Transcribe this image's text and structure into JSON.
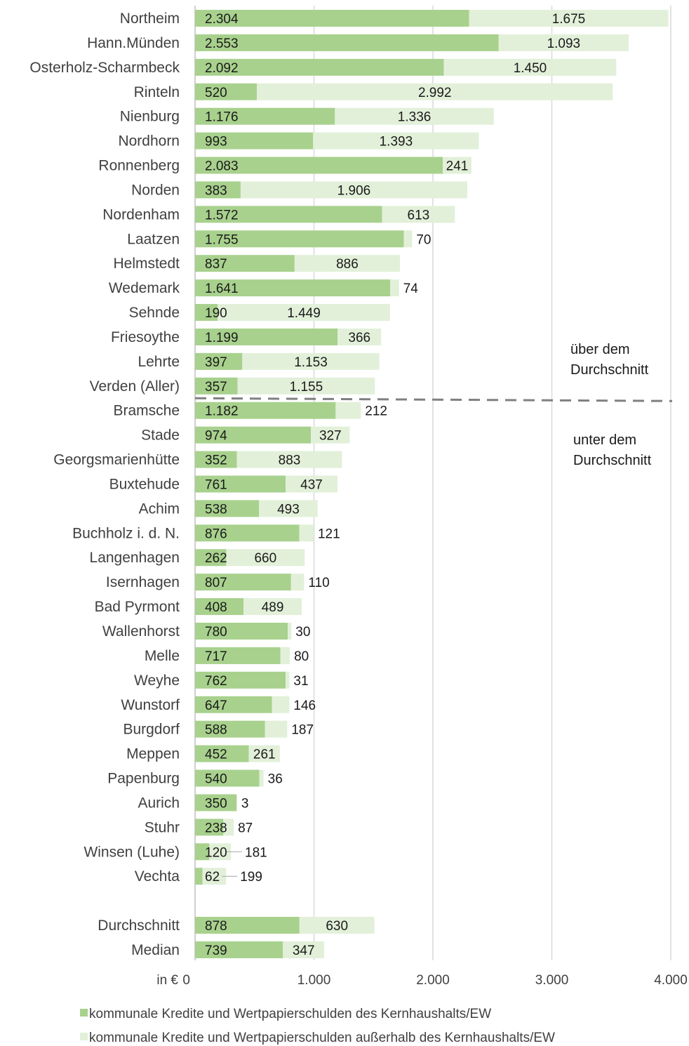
{
  "chart_data": {
    "type": "bar",
    "orientation": "horizontal",
    "stacked": true,
    "categories": [
      "Northeim",
      "Hann.Münden",
      "Osterholz-Scharmbeck",
      "Rinteln",
      "Nienburg",
      "Nordhorn",
      "Ronnenberg",
      "Norden",
      "Nordenham",
      "Laatzen",
      "Helmstedt",
      "Wedemark",
      "Sehnde",
      "Friesoythe",
      "Lehrte",
      "Verden (Aller)",
      "Bramsche",
      "Stade",
      "Georgsmarienhütte",
      "Buxtehude",
      "Achim",
      "Buchholz i. d. N.",
      "Langenhagen",
      "Isernhagen",
      "Bad Pyrmont",
      "Wallenhorst",
      "Melle",
      "Weyhe",
      "Wunstorf",
      "Burgdorf",
      "Meppen",
      "Papenburg",
      "Aurich",
      "Stuhr",
      "Winsen (Luhe)",
      "Vechta",
      "",
      "Durchschnitt",
      "Median"
    ],
    "series": [
      {
        "name": "kommunale Kredite und Wertpapierschulden des Kernhaushalts/EW",
        "color": "#a8d18d",
        "values": [
          2304,
          2553,
          2092,
          520,
          1176,
          993,
          2083,
          383,
          1572,
          1755,
          837,
          1641,
          190,
          1199,
          397,
          357,
          1182,
          974,
          352,
          761,
          538,
          876,
          262,
          807,
          408,
          780,
          717,
          762,
          647,
          588,
          452,
          540,
          350,
          238,
          120,
          62,
          null,
          878,
          739
        ],
        "labels": [
          "2.304",
          "2.553",
          "2.092",
          "520",
          "1.176",
          "993",
          "2.083",
          "383",
          "1.572",
          "1.755",
          "837",
          "1.641",
          "190",
          "1.199",
          "397",
          "357",
          "1.182",
          "974",
          "352",
          "761",
          "538",
          "876",
          "262",
          "807",
          "408",
          "780",
          "717",
          "762",
          "647",
          "588",
          "452",
          "540",
          "350",
          "238",
          "120",
          "62",
          "",
          "878",
          "739"
        ]
      },
      {
        "name": "kommunale Kredite und Wertpapierschulden außerhalb des Kernhaushalts/EW",
        "color": "#e2f0d9",
        "values": [
          1675,
          1093,
          1450,
          2992,
          1336,
          1393,
          241,
          1906,
          613,
          70,
          886,
          74,
          1449,
          366,
          1153,
          1155,
          212,
          327,
          883,
          437,
          493,
          121,
          660,
          110,
          489,
          30,
          80,
          31,
          146,
          187,
          261,
          36,
          3,
          87,
          181,
          199,
          null,
          630,
          347
        ],
        "labels": [
          "1.675",
          "1.093",
          "1.450",
          "2.992",
          "1.336",
          "1.393",
          "241",
          "1.906",
          "613",
          "70",
          "886",
          "74",
          "1.449",
          "366",
          "1.153",
          "1.155",
          "212",
          "327",
          "883",
          "437",
          "493",
          "121",
          "660",
          "110",
          "489",
          "30",
          "80",
          "31",
          "146",
          "187",
          "261",
          "36",
          "3",
          "87",
          "181",
          "199",
          "",
          "630",
          "347"
        ]
      }
    ],
    "x_ticks": [
      "0",
      "1.000",
      "2.000",
      "3.000",
      "4.000"
    ],
    "xlim": [
      0,
      4000
    ],
    "xlabel": "in €",
    "grid": true,
    "divider_after": "Verden (Aller)",
    "annotations": {
      "above": "über dem Durchschnitt",
      "below": "unter dem Durchschnitt"
    },
    "legend_position": "bottom"
  }
}
